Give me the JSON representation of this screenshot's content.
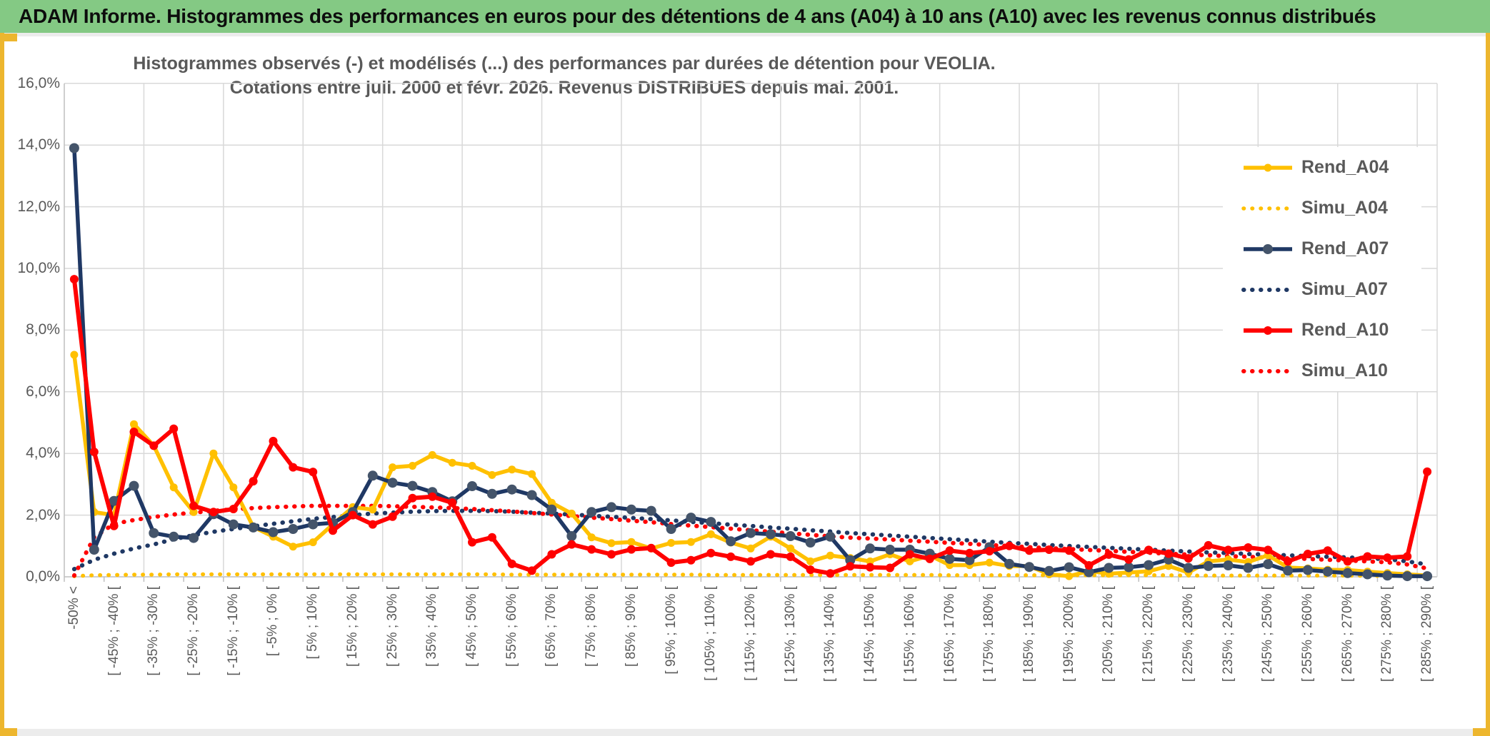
{
  "header": {
    "title": "ADAM Informe. Histogrammes des performances en euros pour des détentions de 4 ans (A04) à 10 ans (A10) avec les revenus connus distribués"
  },
  "chart": {
    "title_line1": "Histogrammes observés (-) et modélisés (...) des performances par durées de détention pour VEOLIA.",
    "title_line2": "Cotations entre juil. 2000 et févr. 2026. Revenus DISTRIBUES depuis mai. 2001."
  },
  "colors": {
    "header_bg": "#84c984",
    "edge_yellow": "#edb62e",
    "grid": "#d9d9d9",
    "axis": "#bfbfbf",
    "text_gray": "#595959",
    "gold": "#FFC000",
    "navy": "#1F3864",
    "navy_marker": "#44546A",
    "red": "#FF0000"
  },
  "chart_data": {
    "type": "line",
    "title": "Histogrammes observés (-) et modélisés (...) des performances par durées de détention pour VEOLIA. Cotations entre juil. 2000 et févr. 2026. Revenus DISTRIBUES depuis mai. 2001.",
    "xlabel": "",
    "ylabel": "",
    "ylim": [
      0,
      16
    ],
    "grid": true,
    "legend_position": "right-inside",
    "y_ticks": [
      "0,0%",
      "2,0%",
      "4,0%",
      "6,0%",
      "8,0%",
      "10,0%",
      "12,0%",
      "14,0%",
      "16,0%"
    ],
    "n_bins": 69,
    "labels_on_every_other_bin": true,
    "tick_labels": [
      "-50% <",
      "[ -45% ; -40% [",
      "[ -35% ; -30% [",
      "[ -25% ; -20% [",
      "[ -15% ; -10% [",
      "[ -5% ; 0% [",
      "[ 5% ; 10% [",
      "[ 15% ; 20% [",
      "[ 25% ; 30% [",
      "[ 35% ; 40% [",
      "[ 45% ; 50% [",
      "[ 55% ; 60% [",
      "[ 65% ; 70% [",
      "[ 75% ; 80% [",
      "[ 85% ; 90% [",
      "[ 95% ; 100% [",
      "[ 105% ; 110% [",
      "[ 115% ; 120% [",
      "[ 125% ; 130% [",
      "[ 135% ; 140% [",
      "[ 145% ; 150% [",
      "[ 155% ; 160% [",
      "[ 165% ; 170% [",
      "[ 175% ; 180% [",
      "[ 185% ; 190% [",
      "[ 195% ; 200% [",
      "[ 205% ; 210% [",
      "[ 215% ; 220% [",
      "[ 225% ; 230% [",
      "[ 235% ; 240% [",
      "[ 245% ; 250% [",
      "[ 255% ; 260% [",
      "[ 265% ; 270% [",
      "[ 275% ; 280% [",
      "[ 285% ; 290% ["
    ],
    "series": [
      {
        "name": "Rend_A04",
        "style": "solid",
        "line_color": "#FFC000",
        "marker_color": "#FFC000",
        "marker_r": 5.5,
        "width": 5.5,
        "values": [
          7.2,
          2.1,
          2.0,
          4.95,
          4.25,
          2.9,
          2.1,
          4.0,
          2.9,
          1.62,
          1.3,
          0.98,
          1.12,
          1.7,
          2.26,
          2.18,
          3.55,
          3.6,
          3.95,
          3.7,
          3.6,
          3.3,
          3.48,
          3.33,
          2.4,
          2.05,
          1.28,
          1.09,
          1.13,
          0.92,
          1.1,
          1.13,
          1.38,
          1.11,
          0.92,
          1.3,
          0.92,
          0.5,
          0.69,
          0.61,
          0.5,
          0.73,
          0.5,
          0.69,
          0.38,
          0.38,
          0.46,
          0.35,
          0.35,
          0.08,
          0.02,
          0.19,
          0.1,
          0.14,
          0.18,
          0.35,
          0.14,
          0.5,
          0.56,
          0.48,
          0.7,
          0.3,
          0.27,
          0.23,
          0.22,
          0.17,
          0.12,
          0.08,
          0.04
        ]
      },
      {
        "name": "Simu_A04",
        "style": "dotted",
        "line_color": "#FFC000",
        "marker_color": "#FFC000",
        "marker_r": 0,
        "width": 5.5,
        "values": [
          0.02,
          0.05,
          0.06,
          0.07,
          0.07,
          0.08,
          0.08,
          0.08,
          0.08,
          0.08,
          0.08,
          0.08,
          0.08,
          0.08,
          0.08,
          0.08,
          0.08,
          0.08,
          0.08,
          0.08,
          0.08,
          0.08,
          0.07,
          0.07,
          0.07,
          0.07,
          0.07,
          0.07,
          0.07,
          0.07,
          0.07,
          0.07,
          0.06,
          0.06,
          0.06,
          0.06,
          0.06,
          0.06,
          0.06,
          0.06,
          0.06,
          0.06,
          0.06,
          0.06,
          0.05,
          0.05,
          0.05,
          0.05,
          0.05,
          0.05,
          0.05,
          0.05,
          0.05,
          0.05,
          0.05,
          0.05,
          0.04,
          0.04,
          0.04,
          0.04,
          0.04,
          0.04,
          0.04,
          0.04,
          0.04,
          0.03,
          0.03,
          0.03,
          0.02
        ]
      },
      {
        "name": "Rend_A07",
        "style": "solid",
        "line_color": "#1F3864",
        "marker_color": "#44546A",
        "marker_r": 7,
        "width": 5.5,
        "values": [
          13.9,
          0.88,
          2.46,
          2.95,
          1.42,
          1.3,
          1.26,
          2.03,
          1.7,
          1.6,
          1.45,
          1.55,
          1.7,
          1.75,
          2.1,
          3.28,
          3.05,
          2.95,
          2.75,
          2.45,
          2.94,
          2.69,
          2.83,
          2.65,
          2.18,
          1.32,
          2.1,
          2.26,
          2.18,
          2.14,
          1.55,
          1.92,
          1.78,
          1.15,
          1.42,
          1.38,
          1.32,
          1.11,
          1.3,
          0.54,
          0.92,
          0.88,
          0.88,
          0.75,
          0.58,
          0.54,
          0.96,
          0.42,
          0.32,
          0.19,
          0.31,
          0.15,
          0.29,
          0.31,
          0.38,
          0.56,
          0.29,
          0.35,
          0.37,
          0.29,
          0.41,
          0.2,
          0.22,
          0.17,
          0.12,
          0.08,
          0.04,
          0.02,
          0.02
        ]
      },
      {
        "name": "Simu_A07",
        "style": "dotted",
        "line_color": "#1F3864",
        "marker_color": "#1F3864",
        "marker_r": 0,
        "width": 6,
        "values": [
          0.25,
          0.55,
          0.75,
          0.92,
          1.05,
          1.22,
          1.35,
          1.46,
          1.55,
          1.64,
          1.72,
          1.8,
          1.88,
          1.94,
          2.0,
          2.05,
          2.08,
          2.11,
          2.13,
          2.14,
          2.14,
          2.13,
          2.11,
          2.08,
          2.05,
          2.02,
          1.98,
          1.95,
          1.91,
          1.87,
          1.83,
          1.78,
          1.74,
          1.69,
          1.65,
          1.6,
          1.56,
          1.51,
          1.47,
          1.42,
          1.38,
          1.34,
          1.3,
          1.26,
          1.22,
          1.18,
          1.14,
          1.1,
          1.07,
          1.03,
          1.0,
          0.97,
          0.94,
          0.91,
          0.88,
          0.85,
          0.82,
          0.79,
          0.77,
          0.74,
          0.72,
          0.7,
          0.67,
          0.65,
          0.63,
          0.6,
          0.57,
          0.5,
          0.4
        ]
      },
      {
        "name": "Rend_A10",
        "style": "solid",
        "line_color": "#FF0000",
        "marker_color": "#FF0000",
        "marker_r": 6,
        "width": 6,
        "values": [
          9.65,
          4.05,
          1.65,
          4.7,
          4.25,
          4.8,
          2.3,
          2.1,
          2.2,
          3.1,
          4.4,
          3.55,
          3.4,
          1.5,
          2.0,
          1.7,
          1.95,
          2.55,
          2.6,
          2.4,
          1.12,
          1.28,
          0.42,
          0.2,
          0.73,
          1.05,
          0.89,
          0.73,
          0.89,
          0.93,
          0.46,
          0.54,
          0.77,
          0.65,
          0.5,
          0.73,
          0.65,
          0.23,
          0.11,
          0.34,
          0.31,
          0.29,
          0.73,
          0.58,
          0.85,
          0.77,
          0.83,
          1.0,
          0.85,
          0.88,
          0.85,
          0.37,
          0.72,
          0.56,
          0.87,
          0.75,
          0.6,
          1.02,
          0.87,
          0.95,
          0.87,
          0.5,
          0.74,
          0.85,
          0.5,
          0.66,
          0.62,
          0.66,
          3.41
        ]
      },
      {
        "name": "Simu_A10",
        "style": "dotted",
        "line_color": "#FF0000",
        "marker_color": "#FF0000",
        "marker_r": 0,
        "width": 6,
        "values": [
          0.04,
          1.28,
          1.72,
          1.84,
          1.94,
          2.02,
          2.08,
          2.14,
          2.19,
          2.23,
          2.26,
          2.28,
          2.3,
          2.3,
          2.3,
          2.3,
          2.29,
          2.27,
          2.25,
          2.23,
          2.2,
          2.16,
          2.12,
          2.07,
          2.02,
          1.97,
          1.92,
          1.87,
          1.82,
          1.77,
          1.71,
          1.66,
          1.61,
          1.56,
          1.51,
          1.46,
          1.41,
          1.36,
          1.31,
          1.27,
          1.24,
          1.21,
          1.17,
          1.14,
          1.1,
          1.07,
          1.03,
          1.0,
          0.96,
          0.93,
          0.9,
          0.87,
          0.84,
          0.81,
          0.78,
          0.75,
          0.72,
          0.7,
          0.67,
          0.65,
          0.62,
          0.6,
          0.58,
          0.55,
          0.53,
          0.5,
          0.47,
          0.4,
          0.27
        ]
      }
    ]
  }
}
